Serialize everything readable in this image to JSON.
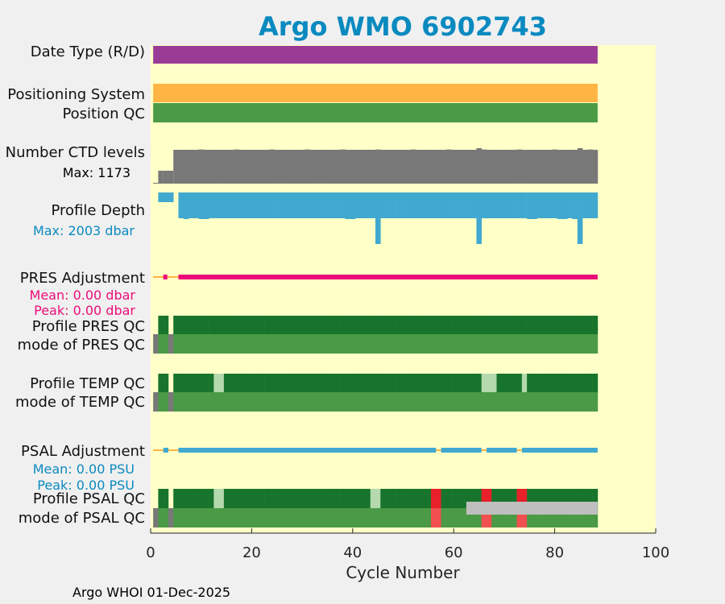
{
  "chart_data": {
    "type": "bar",
    "title": "Argo WMO 6902743",
    "xlabel": "Cycle Number",
    "xlim": [
      0,
      100
    ],
    "xticks": [
      0,
      20,
      40,
      60,
      80,
      100
    ],
    "xtick_labels": [
      "0",
      "20",
      "40",
      "60",
      "80",
      "100"
    ],
    "footer": "Argo WHOI 01-Dec-2025",
    "colors": {
      "title": "#0a8abf",
      "plot_bg": "#ffffc8",
      "figure_bg": "#f0f0f0",
      "purple": "#9a3b96",
      "orange": "#ffb443",
      "good": "#4a9a46",
      "dark_good": "#18742c",
      "grey": "#787878",
      "blue": "#41a9d0",
      "magenta": "#ec0d79",
      "light_green": "#b3d9ad",
      "red": "#e8202a",
      "light_red": "#f05050",
      "light_grey": "#bfbfbf"
    },
    "row_labels": {
      "date_type": "Date Type (R/D)",
      "positioning_system": "Positioning System",
      "position_qc": "Position QC",
      "ctd_levels": "Number CTD levels",
      "ctd_max": "Max: 1173",
      "profile_depth": "Profile Depth",
      "depth_max": "Max: 2003 dbar",
      "pres_adjustment": "PRES Adjustment",
      "pres_mean": "Mean: 0.00 dbar",
      "pres_peak": "Peak: 0.00 dbar",
      "profile_pres_qc": "Profile PRES QC",
      "mode_pres_qc": "mode of PRES QC",
      "profile_temp_qc": "Profile TEMP QC",
      "mode_temp_qc": "mode of TEMP QC",
      "psal_adjustment": "PSAL Adjustment",
      "psal_mean": "Mean: 0.00 PSU",
      "psal_peak": "Peak: 0.00 PSU",
      "profile_psal_qc": "Profile PSAL QC",
      "mode_psal_qc": "mode of PSAL QC"
    },
    "cycles": {
      "first": 1,
      "last": 88
    },
    "ctd_levels_max": 1173,
    "ctd_levels": {
      "partial_cycles": [
        [
          1,
          4
        ],
        [
          2,
          4
        ],
        [
          3,
          4
        ],
        [
          4,
          4
        ]
      ],
      "full_from": 5,
      "full_to": 88,
      "base_level": 1120,
      "spike_cycles": [
        [
          45,
          1173
        ],
        [
          65,
          1173
        ],
        [
          85,
          1173
        ]
      ]
    },
    "profile_depth_max": 2003,
    "profile_depth": {
      "short_cycles": [
        2,
        3,
        4
      ],
      "short_depth": 155,
      "base_depth": 1000,
      "deep_cycles": [
        45,
        65,
        85
      ],
      "deep_depth": 2003,
      "slight_cycles": [
        7,
        10,
        11,
        39,
        40,
        75,
        76,
        81,
        82,
        84
      ]
    },
    "pres_adjustment": {
      "mean": 0.0,
      "peak": 0.0,
      "from": 1,
      "to": 88
    },
    "psal_adjustment": {
      "mean": 0.0,
      "peak": 0.0,
      "segments": [
        [
          6,
          56
        ],
        [
          58,
          65
        ],
        [
          67,
          72
        ],
        [
          74,
          88
        ]
      ],
      "markers": [
        3
      ]
    },
    "profile_pres_qc": {
      "grades": "A",
      "gap_cycle": 4
    },
    "profile_temp_qc": {
      "grades": "A",
      "gap_cycle": 4,
      "light_cycles": [
        [
          13,
          14
        ],
        [
          66,
          68
        ],
        [
          74,
          74
        ]
      ]
    },
    "profile_psal_qc": {
      "grades": "A",
      "gap_cycle": 4,
      "light_cycles": [
        [
          13,
          14
        ],
        [
          44,
          45
        ]
      ],
      "red_cycles": [
        [
          56,
          57
        ],
        [
          66,
          67
        ],
        [
          73,
          74
        ]
      ]
    },
    "mode_psal_qc": {
      "red_cycles": [
        [
          56,
          57
        ],
        [
          66,
          67
        ],
        [
          73,
          74
        ]
      ],
      "grey_from": 63
    }
  }
}
